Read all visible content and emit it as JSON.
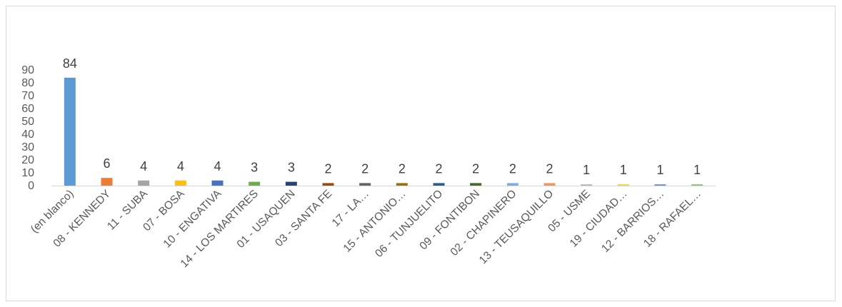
{
  "chart_data": {
    "type": "bar",
    "categories": [
      "(en blanco)",
      "08 - KENNEDY",
      "11 - SUBA",
      "07 - BOSA",
      "10 - ENGATIVA",
      "14 - LOS MARTIRES",
      "01 - USAQUEN",
      "03 - SANTA FE",
      "17 - LA…",
      "15 - ANTONIO…",
      "06 - TUNJUELITO",
      "09 - FONTIBON",
      "02 - CHAPINERO",
      "13 - TEUSAQUILLO",
      "05 - USME",
      "19 - CIUDAD…",
      "12 - BARRIOS…",
      "18 - RAFAEL…"
    ],
    "values": [
      84,
      6,
      4,
      4,
      4,
      3,
      3,
      2,
      2,
      2,
      2,
      2,
      2,
      2,
      1,
      1,
      1,
      1
    ],
    "colors": [
      "#5b9bd5",
      "#ed7d31",
      "#a5a5a5",
      "#ffc000",
      "#4472c4",
      "#70ad47",
      "#264478",
      "#9e480e",
      "#636363",
      "#997300",
      "#255e91",
      "#43682b",
      "#7cafdd",
      "#f1975a",
      "#b7b7b7",
      "#ffcd33",
      "#698ed0",
      "#8cc168"
    ],
    "yticks": [
      0,
      10,
      20,
      30,
      40,
      50,
      60,
      70,
      80,
      90
    ],
    "ylim": [
      0,
      90
    ],
    "grid": false,
    "data_labels": true
  }
}
